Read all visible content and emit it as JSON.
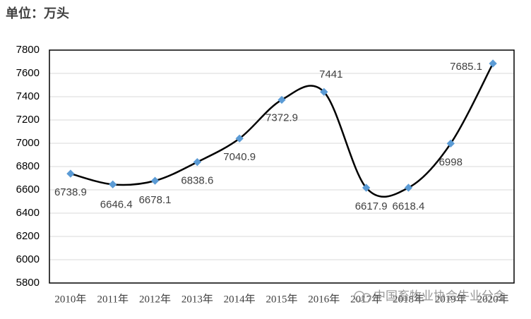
{
  "chart_data": {
    "type": "line",
    "unit_label": "单位：万头",
    "categories": [
      "2010年",
      "2011年",
      "2012年",
      "2013年",
      "2014年",
      "2015年",
      "2016年",
      "2017年",
      "2018年",
      "2019年",
      "2020年"
    ],
    "values": [
      6738.9,
      6646.4,
      6678.1,
      6838.6,
      7040.9,
      7372.9,
      7441,
      6617.9,
      6618.4,
      6998,
      7685.1
    ],
    "line_color": "#000000",
    "marker_color": "#5b9bd5",
    "ylim": [
      5800,
      7800
    ],
    "yticks": [
      5800,
      6000,
      6200,
      6400,
      6600,
      6800,
      7000,
      7200,
      7400,
      7600,
      7800
    ],
    "grid": true,
    "smooth": true,
    "watermark": "中国畜牧业协会牛业分会"
  }
}
